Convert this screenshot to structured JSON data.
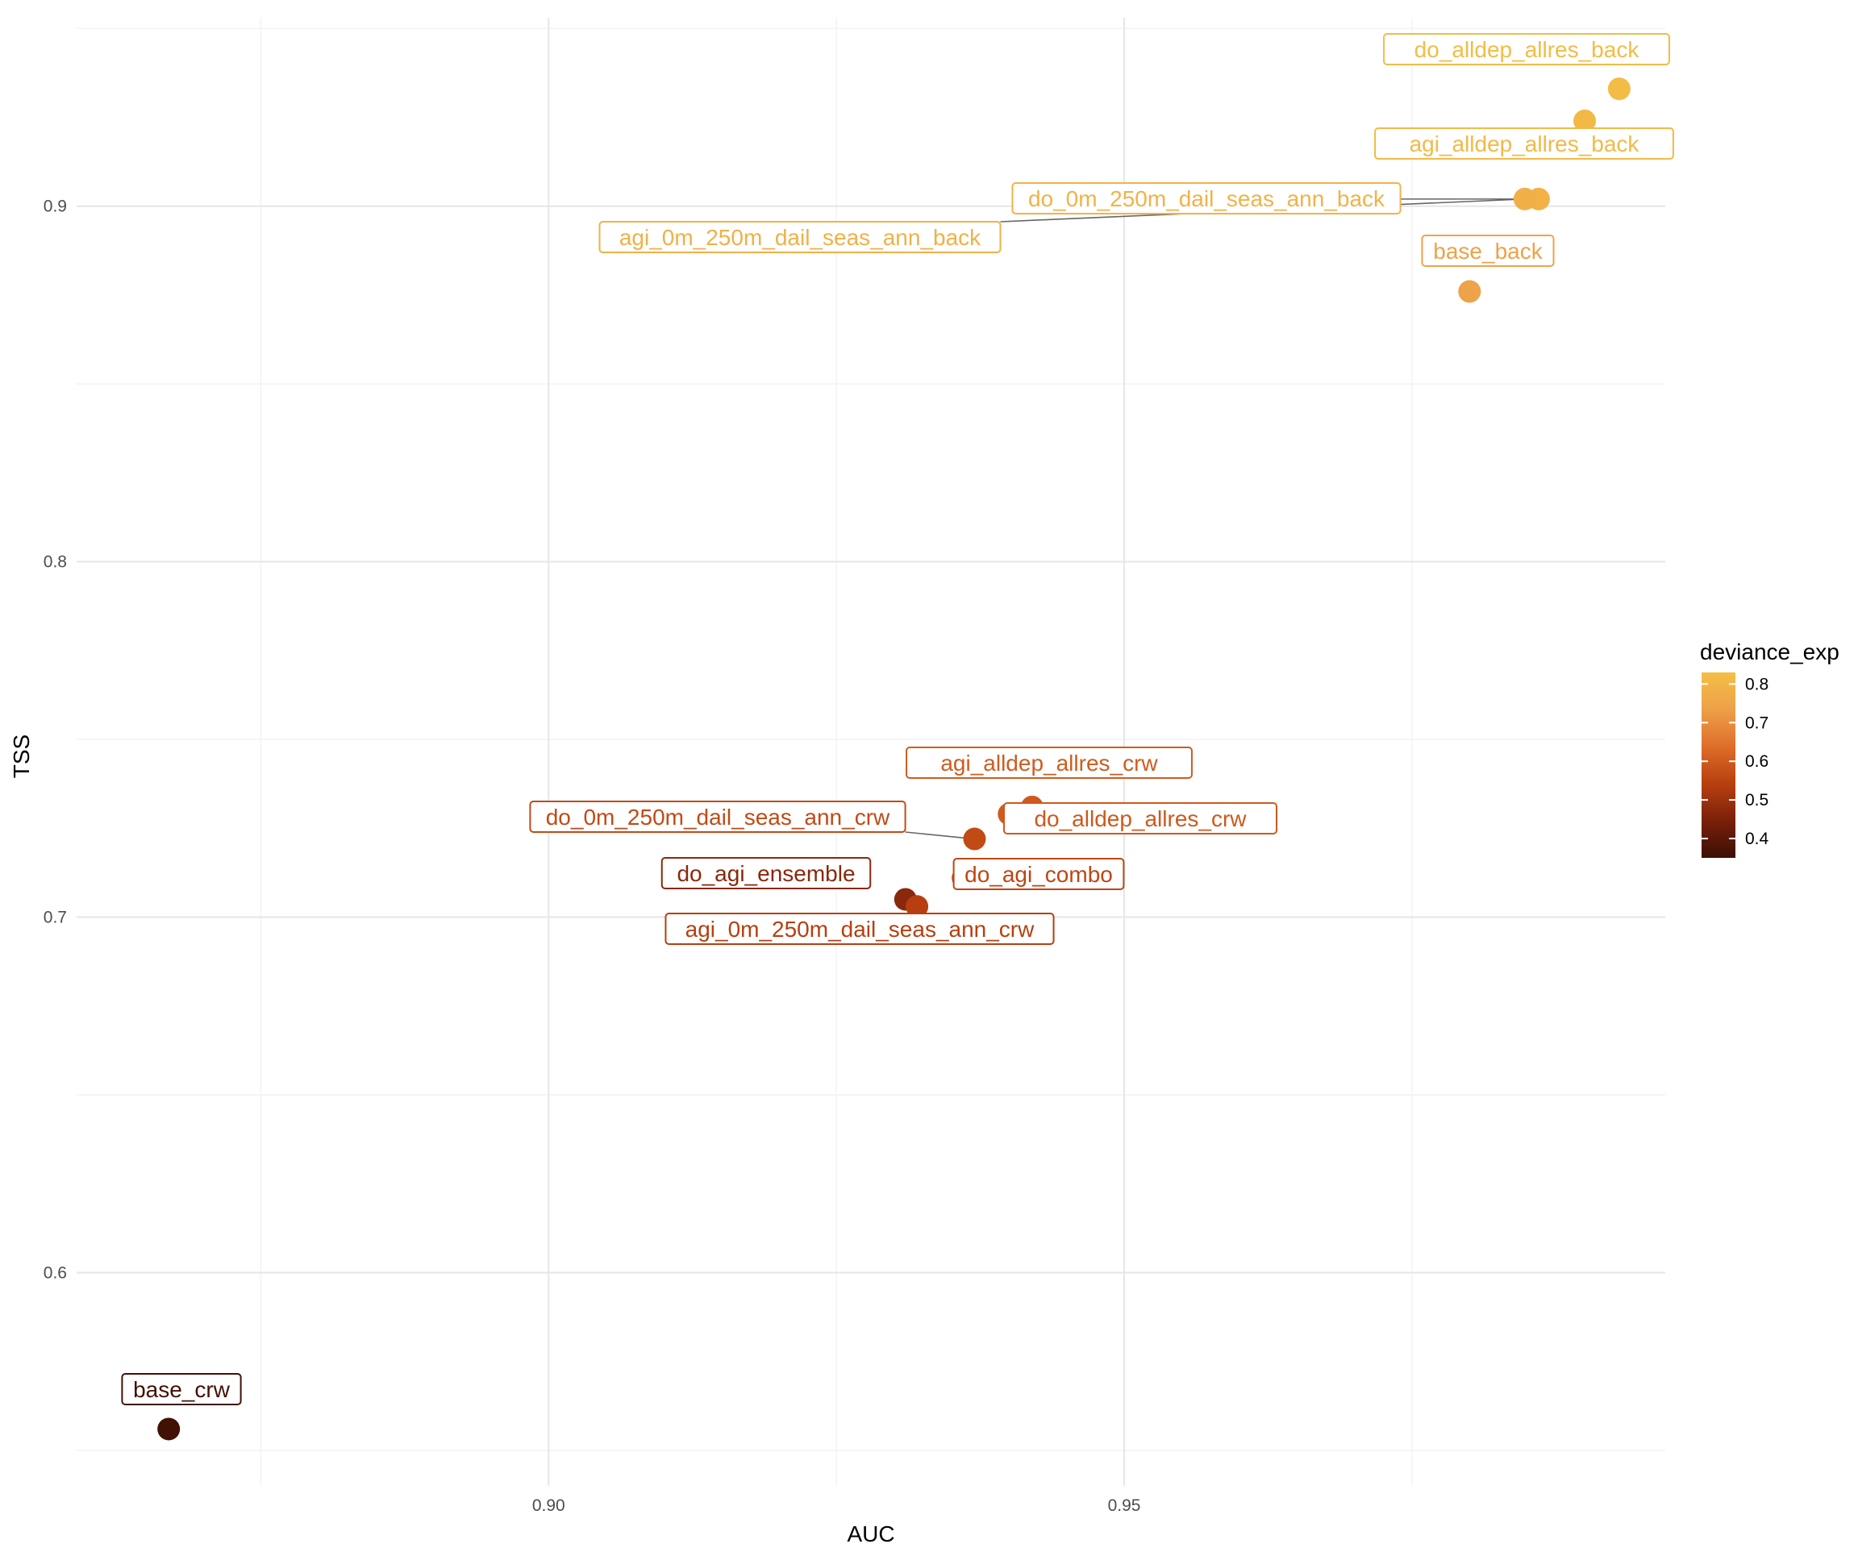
{
  "chart_data": {
    "type": "scatter",
    "xlabel": "AUC",
    "ylabel": "TSS",
    "xlim": [
      0.859,
      0.997
    ],
    "ylim": [
      0.54,
      0.953
    ],
    "x_ticks": [
      0.9,
      0.95
    ],
    "x_tick_labels": [
      "0.90",
      "0.95"
    ],
    "y_ticks": [
      0.6,
      0.7,
      0.8,
      0.9
    ],
    "y_tick_labels": [
      "0.6",
      "0.7",
      "0.8",
      "0.9"
    ],
    "grid": true,
    "legend": {
      "title": "deviance_exp",
      "placement": "right",
      "range": [
        0.35,
        0.83
      ],
      "ticks": [
        0.4,
        0.5,
        0.6,
        0.7,
        0.8
      ],
      "tick_labels": [
        "0.4",
        "0.5",
        "0.6",
        "0.7",
        "0.8"
      ],
      "colors_low_to_high": [
        "#3a0f04",
        "#7a200a",
        "#b8400f",
        "#de6e2a",
        "#eea049",
        "#f4bf45"
      ]
    },
    "points": [
      {
        "label": "do_alldep_allres_back",
        "x": 0.993,
        "y": 0.933,
        "deviance_exp": 0.82
      },
      {
        "label": "agi_alldep_allres_back",
        "x": 0.99,
        "y": 0.924,
        "deviance_exp": 0.81
      },
      {
        "label": "do_0m_250m_dail_seas_ann_back",
        "x": 0.986,
        "y": 0.902,
        "deviance_exp": 0.79
      },
      {
        "label": "agi_0m_250m_dail_seas_ann_back",
        "x": 0.9848,
        "y": 0.902,
        "deviance_exp": 0.785
      },
      {
        "label": "base_back",
        "x": 0.98,
        "y": 0.876,
        "deviance_exp": 0.74
      },
      {
        "label": "agi_alldep_allres_crw",
        "x": 0.94,
        "y": 0.729,
        "deviance_exp": 0.6
      },
      {
        "label": "do_alldep_allres_crw",
        "x": 0.942,
        "y": 0.731,
        "deviance_exp": 0.595
      },
      {
        "label": "do_0m_250m_dail_seas_ann_crw",
        "x": 0.937,
        "y": 0.722,
        "deviance_exp": 0.565
      },
      {
        "label": "do_agi_combo",
        "x": 0.936,
        "y": 0.711,
        "deviance_exp": 0.555
      },
      {
        "label": "do_agi_ensemble",
        "x": 0.931,
        "y": 0.705,
        "deviance_exp": 0.47
      },
      {
        "label": "agi_0m_250m_dail_seas_ann_crw",
        "x": 0.932,
        "y": 0.703,
        "deviance_exp": 0.54
      },
      {
        "label": "base_crw",
        "x": 0.867,
        "y": 0.556,
        "deviance_exp": 0.36
      }
    ]
  }
}
